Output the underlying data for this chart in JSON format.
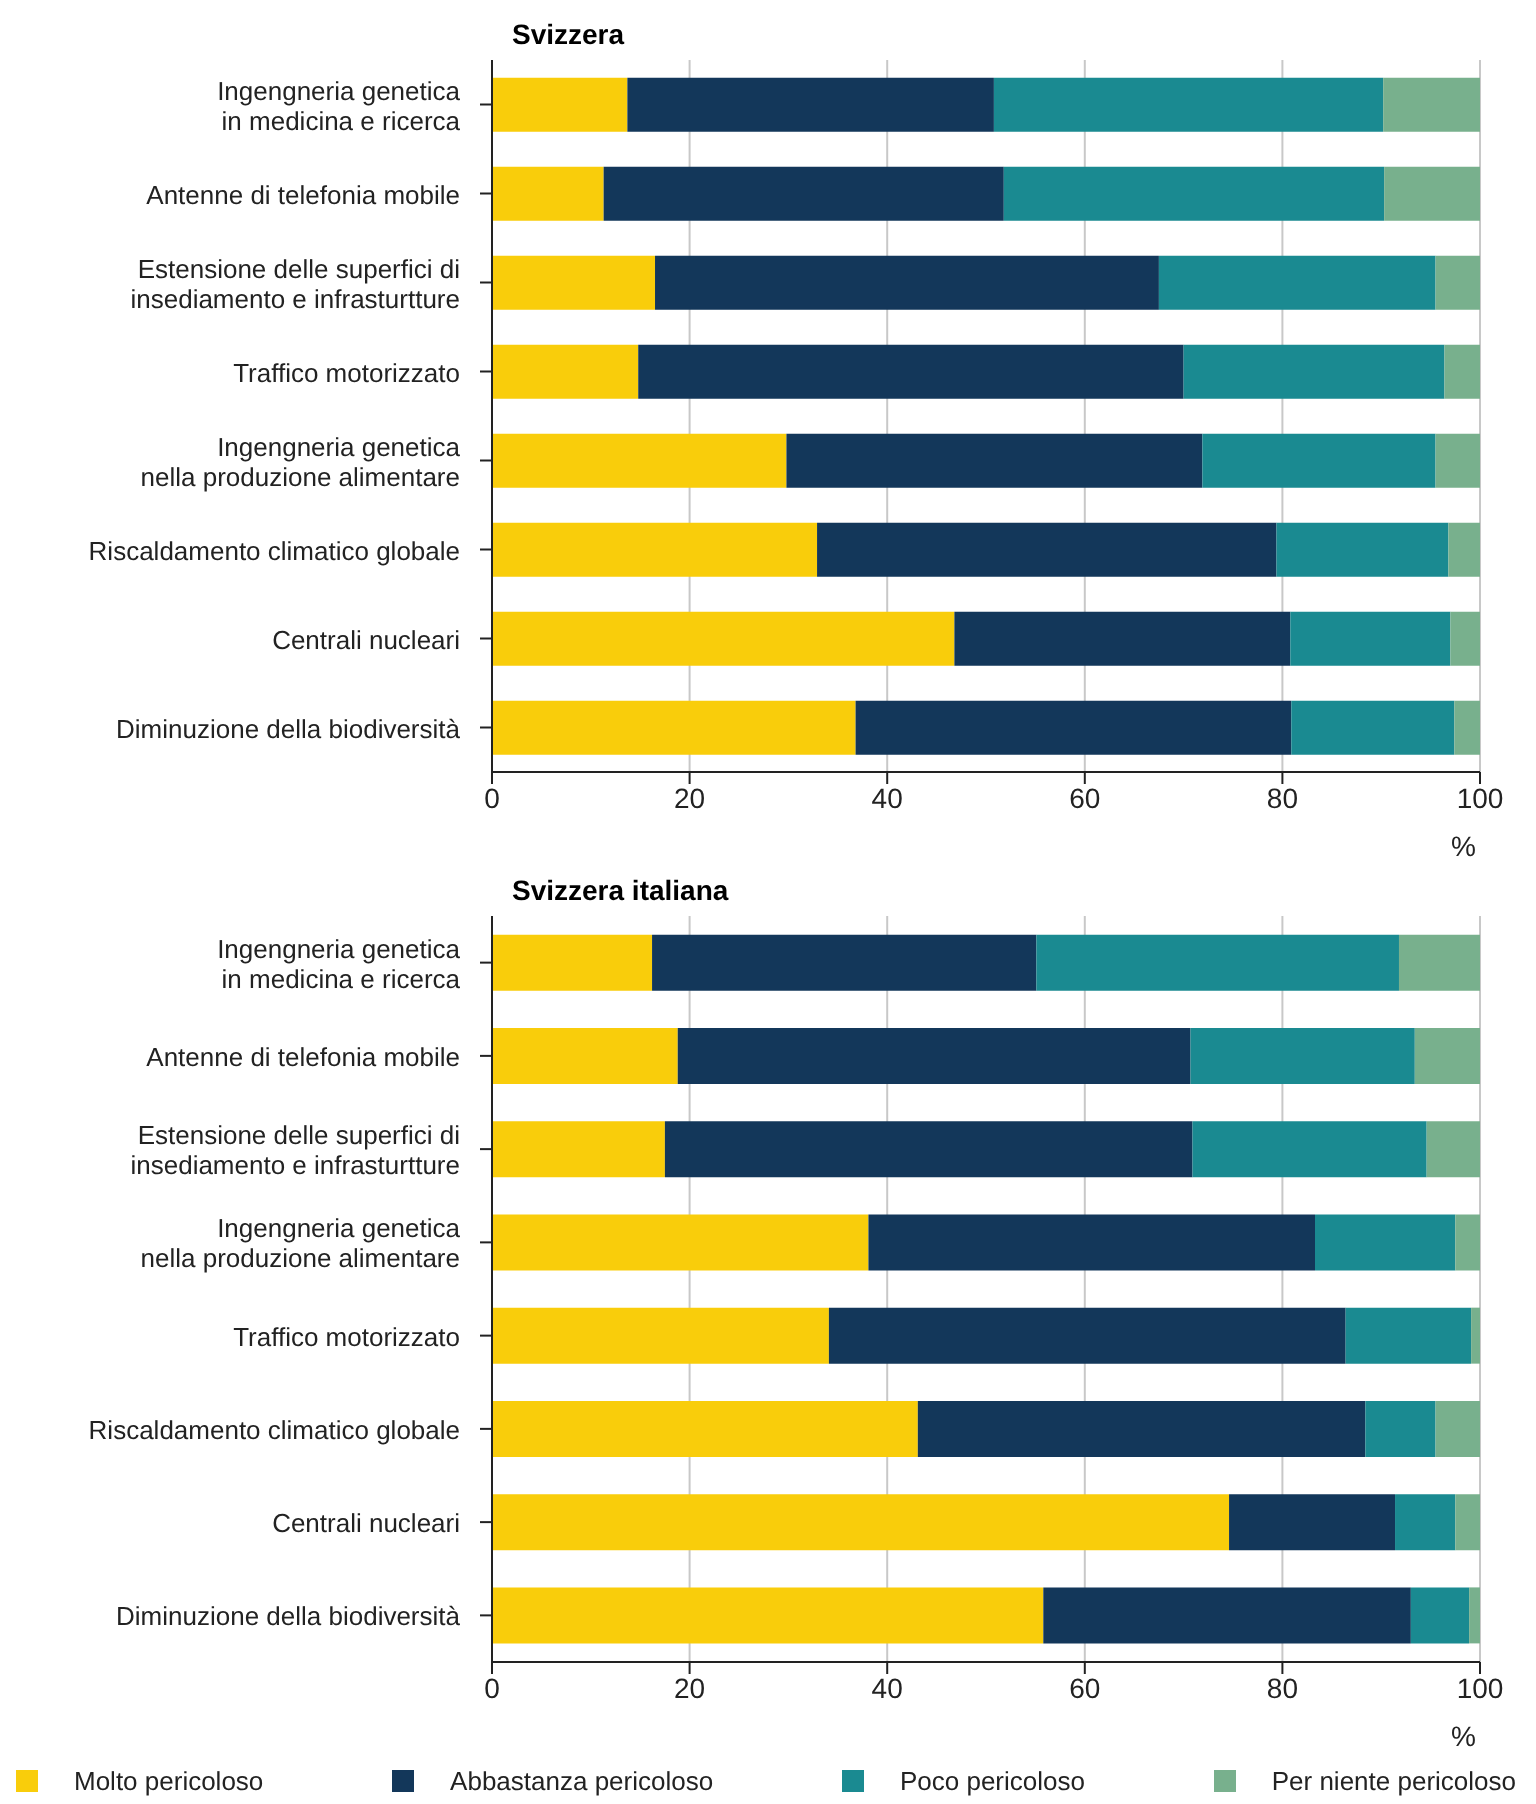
{
  "chart_data": [
    {
      "type": "bar",
      "orientation": "horizontal",
      "stacked": true,
      "title": "Svizzera",
      "xlabel": "%",
      "categories": [
        "Ingengneria genetica\nin medicina e ricerca",
        "Antenne di telefonia mobile",
        "Estensione delle superfici di\ninsediamento e infrasturtture",
        "Traffico motorizzato",
        "Ingengneria genetica\nnella produzione alimentare",
        "Riscaldamento climatico globale",
        "Centrali nucleari",
        "Diminuzione della biodiversità"
      ],
      "series": [
        {
          "color": "#f9cd0b",
          "values": [
            13.7,
            11.3,
            16.5,
            14.8,
            29.8,
            32.9,
            46.8,
            36.8
          ]
        },
        {
          "color": "#13375a",
          "values": [
            37.1,
            40.5,
            51.0,
            55.2,
            42.1,
            46.5,
            34.0,
            44.1
          ]
        },
        {
          "color": "#1a8a91",
          "values": [
            39.4,
            38.5,
            28.0,
            26.4,
            23.6,
            17.4,
            16.2,
            16.5
          ]
        },
        {
          "color": "#78b08d",
          "values": [
            9.8,
            9.7,
            4.5,
            3.6,
            4.5,
            3.2,
            3.0,
            2.6
          ]
        }
      ],
      "xlim": [
        0,
        100
      ],
      "xticks": [
        0,
        20,
        40,
        60,
        80,
        100
      ],
      "grid": "x",
      "legend": false
    },
    {
      "type": "bar",
      "orientation": "horizontal",
      "stacked": true,
      "title": "Svizzera italiana",
      "xlabel": "%",
      "categories": [
        "Ingengneria genetica\nin medicina e ricerca",
        "Antenne di telefonia mobile",
        "Estensione delle superfici di\ninsediamento e infrasturtture",
        "Ingengneria genetica\nnella produzione alimentare",
        "Traffico motorizzato",
        "Riscaldamento climatico globale",
        "Centrali nucleari",
        "Diminuzione della biodiversità"
      ],
      "series": [
        {
          "name": "Molto pericoloso",
          "color": "#f9cd0b",
          "values": [
            16.2,
            18.8,
            17.5,
            38.1,
            34.1,
            43.1,
            74.6,
            55.8
          ]
        },
        {
          "name": "Abbastanza pericoloso",
          "color": "#13375a",
          "values": [
            38.9,
            51.9,
            53.4,
            45.2,
            52.3,
            45.3,
            16.8,
            37.2
          ]
        },
        {
          "name": "Poco pericoloso",
          "color": "#1a8a91",
          "values": [
            36.7,
            22.7,
            23.7,
            14.2,
            12.7,
            7.1,
            6.1,
            5.9
          ]
        },
        {
          "name": "Per niente pericoloso",
          "color": "#78b08d",
          "values": [
            8.2,
            6.6,
            5.4,
            2.5,
            0.9,
            4.5,
            2.5,
            1.1
          ]
        }
      ],
      "xlim": [
        0,
        100
      ],
      "xticks": [
        0,
        20,
        40,
        60,
        80,
        100
      ],
      "grid": "x",
      "legend": "bottom"
    }
  ]
}
